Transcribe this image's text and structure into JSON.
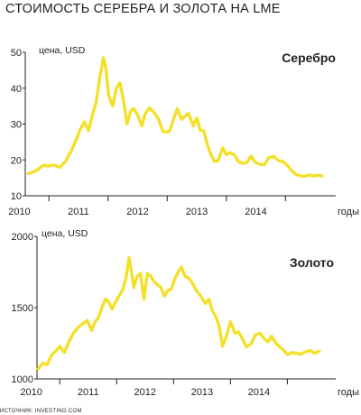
{
  "title": "СТОИМОСТЬ СЕРЕБРА И ЗОЛОТА НА LME",
  "source_note": "ИСТОЧНИК: INVESTING.COM",
  "colors": {
    "line": "#f3e02b",
    "axis": "#231f20",
    "text": "#231f20",
    "background": "#ffffff"
  },
  "chart_data": [
    {
      "type": "line",
      "series_title": "Серебро",
      "unit_label": "цена, USD",
      "x_unit_label": "годы",
      "x_range": [
        2009.6,
        2014.85
      ],
      "ylim": [
        10,
        50
      ],
      "y_ticks": [
        10,
        20,
        30,
        40,
        50
      ],
      "year_ticks": [
        2010,
        2011,
        2012,
        2013,
        2014
      ],
      "grid": false,
      "series": [
        {
          "x": [
            2009.65,
            2009.72,
            2009.82,
            2009.9,
            2010.0,
            2010.08,
            2010.18,
            2010.28,
            2010.38,
            2010.46,
            2010.52,
            2010.6,
            2010.67,
            2010.73,
            2010.8,
            2010.86,
            2010.92,
            2010.96,
            2011.01,
            2011.08,
            2011.14,
            2011.2,
            2011.26,
            2011.32,
            2011.38,
            2011.43,
            2011.5,
            2011.57,
            2011.63,
            2011.7,
            2011.78,
            2011.85,
            2011.93,
            2011.98,
            2012.04,
            2012.1,
            2012.17,
            2012.24,
            2012.3,
            2012.36,
            2012.44,
            2012.5,
            2012.56,
            2012.62,
            2012.68,
            2012.74,
            2012.8,
            2012.86,
            2012.94,
            2013.0,
            2013.06,
            2013.13,
            2013.2,
            2013.28,
            2013.35,
            2013.42,
            2013.48,
            2013.56,
            2013.64,
            2013.72,
            2013.8,
            2013.88,
            2013.96,
            2014.03,
            2014.1,
            2014.17,
            2014.24,
            2014.32,
            2014.4,
            2014.47,
            2014.55,
            2014.62
          ],
          "y": [
            16.2,
            16.5,
            17.4,
            18.5,
            18.3,
            18.6,
            17.9,
            19.6,
            22.6,
            25.6,
            28.2,
            30.6,
            28.2,
            32.1,
            36.2,
            43.0,
            48.5,
            46.0,
            38.0,
            35.0,
            40.0,
            41.5,
            36.8,
            30.0,
            33.5,
            34.4,
            32.5,
            29.5,
            33.0,
            34.5,
            33.2,
            31.5,
            27.9,
            27.8,
            28.0,
            31.0,
            34.3,
            31.3,
            32.2,
            33.0,
            29.5,
            31.7,
            28.2,
            28.1,
            24.2,
            21.5,
            19.5,
            19.8,
            23.4,
            21.5,
            22.0,
            21.5,
            19.6,
            19.0,
            19.3,
            21.1,
            19.5,
            18.8,
            18.6,
            20.7,
            21.0,
            19.8,
            19.5,
            18.5,
            17.1,
            16.0,
            15.6,
            15.4,
            15.8,
            15.5,
            15.7,
            15.5
          ]
        }
      ]
    },
    {
      "type": "line",
      "series_title": "Золото",
      "unit_label": "цена, USD",
      "x_unit_label": "годы",
      "x_range": [
        2009.6,
        2014.85
      ],
      "ylim": [
        1000,
        2000
      ],
      "y_ticks": [
        1000,
        1500,
        2000
      ],
      "year_ticks": [
        2010,
        2011,
        2012,
        2013,
        2014
      ],
      "grid": false,
      "series": [
        {
          "x": [
            2009.62,
            2009.7,
            2009.78,
            2009.86,
            2009.94,
            2010.0,
            2010.08,
            2010.16,
            2010.24,
            2010.32,
            2010.4,
            2010.48,
            2010.56,
            2010.62,
            2010.68,
            2010.74,
            2010.8,
            2010.86,
            2010.92,
            2010.98,
            2011.04,
            2011.1,
            2011.16,
            2011.22,
            2011.26,
            2011.3,
            2011.36,
            2011.42,
            2011.48,
            2011.54,
            2011.6,
            2011.66,
            2011.72,
            2011.78,
            2011.84,
            2011.9,
            2011.96,
            2012.02,
            2012.08,
            2012.14,
            2012.2,
            2012.26,
            2012.32,
            2012.4,
            2012.48,
            2012.56,
            2012.62,
            2012.68,
            2012.74,
            2012.8,
            2012.86,
            2012.93,
            2013.0,
            2013.08,
            2013.14,
            2013.2,
            2013.28,
            2013.36,
            2013.44,
            2013.52,
            2013.6,
            2013.66,
            2013.72,
            2013.8,
            2013.88,
            2013.94,
            2014.0,
            2014.08,
            2014.16,
            2014.24,
            2014.32,
            2014.4,
            2014.48,
            2014.56
          ],
          "y": [
            1070,
            1110,
            1100,
            1170,
            1200,
            1230,
            1185,
            1260,
            1320,
            1360,
            1385,
            1410,
            1340,
            1400,
            1430,
            1500,
            1560,
            1540,
            1490,
            1540,
            1580,
            1620,
            1700,
            1850,
            1750,
            1640,
            1720,
            1740,
            1560,
            1740,
            1720,
            1680,
            1660,
            1640,
            1580,
            1620,
            1630,
            1700,
            1750,
            1785,
            1720,
            1710,
            1680,
            1620,
            1580,
            1530,
            1560,
            1480,
            1440,
            1370,
            1230,
            1300,
            1400,
            1320,
            1330,
            1290,
            1225,
            1245,
            1310,
            1320,
            1280,
            1260,
            1300,
            1250,
            1220,
            1200,
            1170,
            1185,
            1180,
            1175,
            1190,
            1200,
            1180,
            1195
          ]
        }
      ]
    }
  ]
}
